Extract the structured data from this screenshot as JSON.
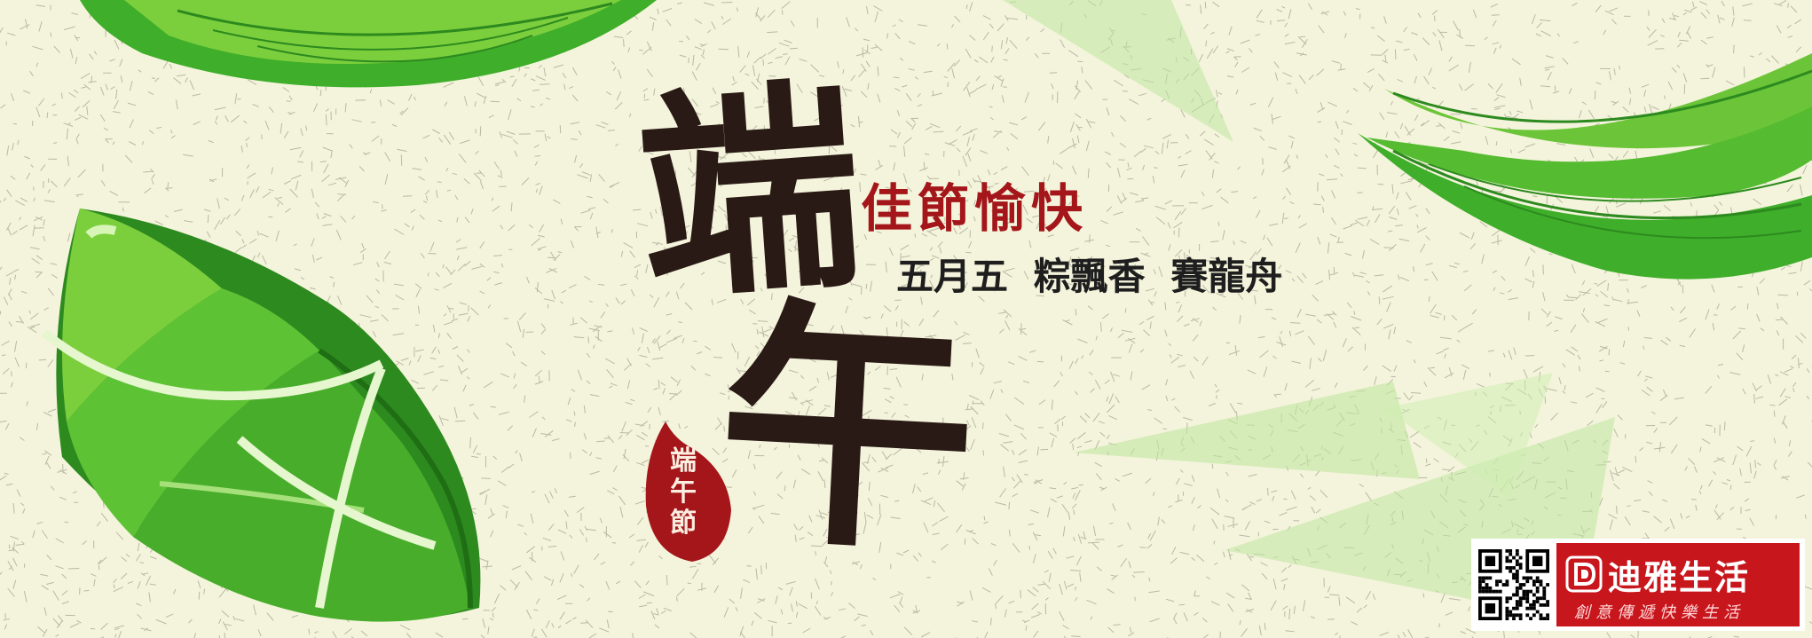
{
  "banner": {
    "title_char_1": "端",
    "title_char_2": "午",
    "greeting": "佳節愉快",
    "tagline": "五月五 粽飄香 賽龍舟",
    "seal": {
      "line1": "端",
      "line2": "午",
      "line3": "節"
    }
  },
  "brand": {
    "name": "迪雅生活",
    "slogan": "創意傳遞快樂生活"
  },
  "colors": {
    "background": "#f4f4dc",
    "title": "#2a1a16",
    "accent_red": "#a4161a",
    "leaf_green": "#3fae2a",
    "brand_red": "#c8161d"
  },
  "icons": [
    "zongzi-illustration",
    "bamboo-leaf-illustration",
    "qr-code-icon",
    "brand-logo-icon"
  ]
}
